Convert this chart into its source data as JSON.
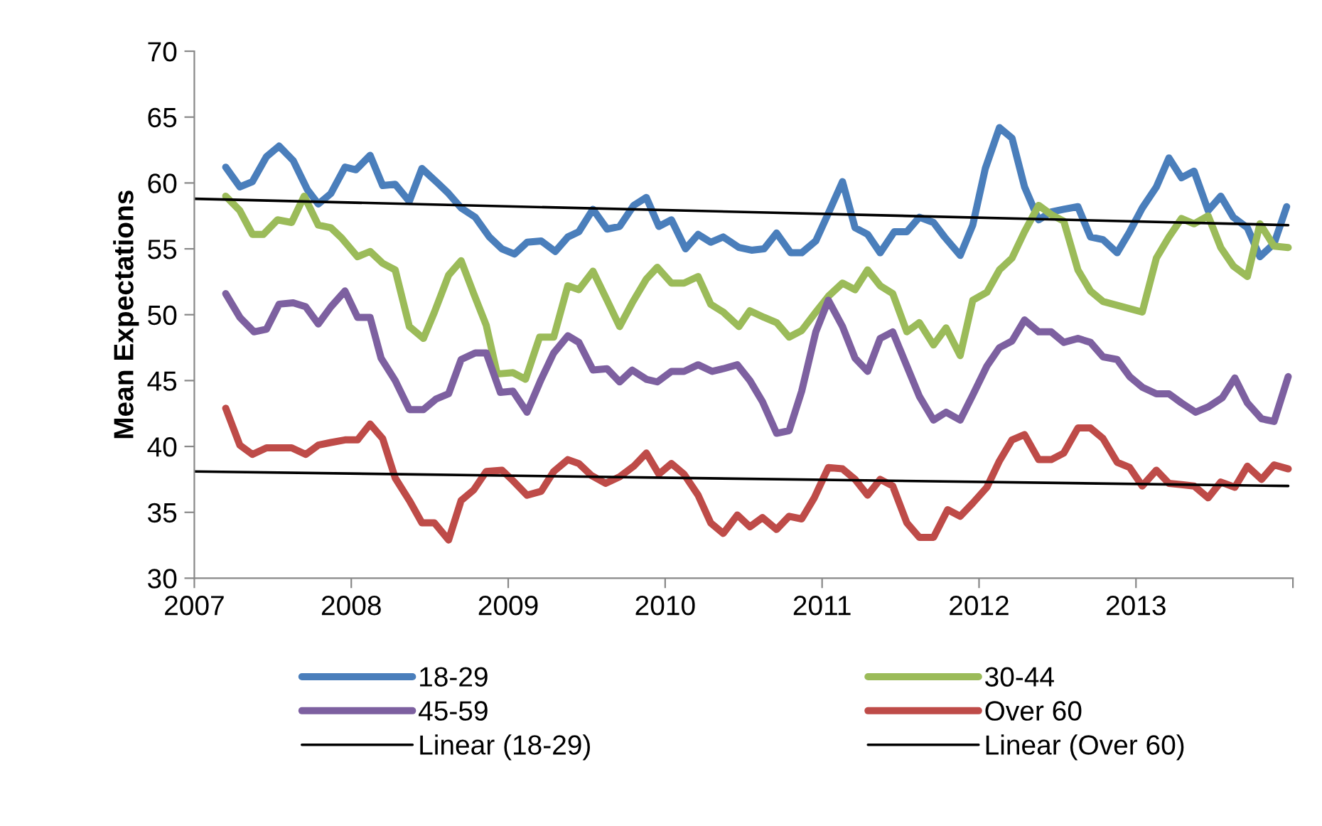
{
  "chart_data": {
    "type": "line",
    "ylabel": "Mean Expectations",
    "xlim": [
      2007,
      2014
    ],
    "xticks": [
      2007,
      2008,
      2009,
      2010,
      2011,
      2012,
      2013,
      {
        "value": 2014,
        "label": null
      }
    ],
    "ylim": [
      30,
      70
    ],
    "yticks": [
      30,
      35,
      40,
      45,
      50,
      55,
      60,
      65,
      70
    ],
    "grid": false,
    "legend": "bottom",
    "marker": "none",
    "line_style": "solid",
    "series": [
      {
        "name": "18-29",
        "color": "#4a7ebb",
        "x": [
          2007.2,
          2007.29,
          2007.37,
          2007.46,
          2007.54,
          2007.63,
          2007.72,
          2007.79,
          2007.87,
          2007.96,
          2008.03,
          2008.12,
          2008.2,
          2008.28,
          2008.37,
          2008.45,
          2008.55,
          2008.62,
          2008.7,
          2008.79,
          2008.88,
          2008.96,
          2009.04,
          2009.12,
          2009.21,
          2009.3,
          2009.38,
          2009.45,
          2009.54,
          2009.63,
          2009.71,
          2009.8,
          2009.88,
          2009.96,
          2010.04,
          2010.13,
          2010.21,
          2010.29,
          2010.37,
          2010.47,
          2010.55,
          2010.63,
          2010.71,
          2010.8,
          2010.87,
          2010.96,
          2011.04,
          2011.13,
          2011.21,
          2011.29,
          2011.37,
          2011.46,
          2011.54,
          2011.62,
          2011.71,
          2011.78,
          2011.88,
          2011.96,
          2012.04,
          2012.13,
          2012.21,
          2012.29,
          2012.38,
          2012.46,
          2012.54,
          2012.63,
          2012.71,
          2012.79,
          2012.88,
          2012.96,
          2013.04,
          2013.13,
          2013.21,
          2013.29,
          2013.37,
          2013.46,
          2013.54,
          2013.62,
          2013.71,
          2013.79,
          2013.88,
          2013.96
        ],
        "values": [
          61.2,
          59.7,
          60.1,
          62.0,
          62.8,
          61.7,
          59.5,
          58.4,
          59.2,
          61.2,
          61.0,
          62.1,
          59.8,
          59.9,
          58.6,
          61.1,
          60.0,
          59.2,
          58.1,
          57.4,
          55.9,
          55.0,
          54.6,
          55.5,
          55.6,
          54.8,
          55.9,
          56.3,
          58.0,
          56.5,
          56.7,
          58.3,
          58.9,
          56.7,
          57.2,
          55.0,
          56.1,
          55.5,
          55.9,
          55.1,
          54.9,
          55.0,
          56.2,
          54.7,
          54.7,
          55.6,
          57.7,
          60.1,
          56.6,
          56.1,
          54.7,
          56.3,
          56.3,
          57.4,
          57.0,
          55.9,
          54.5,
          56.8,
          61.1,
          64.2,
          63.4,
          59.7,
          57.2,
          57.8,
          58.0,
          58.2,
          55.9,
          55.7,
          54.7,
          56.3,
          58.1,
          59.7,
          61.9,
          60.4,
          60.9,
          57.9,
          59.0,
          57.4,
          56.6,
          54.4,
          55.4,
          58.2
        ]
      },
      {
        "name": "30-44",
        "color": "#9bbb59",
        "x": [
          2007.2,
          2007.29,
          2007.37,
          2007.44,
          2007.53,
          2007.62,
          2007.7,
          2007.79,
          2007.87,
          2007.94,
          2008.04,
          2008.12,
          2008.2,
          2008.28,
          2008.37,
          2008.46,
          2008.53,
          2008.62,
          2008.7,
          2008.78,
          2008.86,
          2008.93,
          2009.03,
          2009.11,
          2009.2,
          2009.29,
          2009.38,
          2009.45,
          2009.54,
          2009.63,
          2009.71,
          2009.79,
          2009.88,
          2009.95,
          2010.04,
          2010.12,
          2010.21,
          2010.29,
          2010.37,
          2010.47,
          2010.54,
          2010.63,
          2010.71,
          2010.79,
          2010.87,
          2010.96,
          2011.04,
          2011.13,
          2011.21,
          2011.29,
          2011.37,
          2011.45,
          2011.54,
          2011.62,
          2011.71,
          2011.79,
          2011.88,
          2011.96,
          2012.05,
          2012.13,
          2012.21,
          2012.29,
          2012.38,
          2012.46,
          2012.54,
          2012.63,
          2012.71,
          2012.79,
          2013.04,
          2013.13,
          2013.21,
          2013.29,
          2013.37,
          2013.46,
          2013.54,
          2013.62,
          2013.71,
          2013.79,
          2013.88,
          2013.97
        ],
        "values": [
          59.0,
          57.9,
          56.1,
          56.1,
          57.2,
          57.0,
          59.0,
          56.8,
          56.6,
          55.8,
          54.4,
          54.8,
          53.9,
          53.4,
          49.1,
          48.2,
          50.2,
          53.0,
          54.1,
          51.6,
          49.2,
          45.5,
          45.6,
          45.1,
          48.3,
          48.3,
          52.2,
          51.9,
          53.3,
          51.1,
          49.1,
          50.9,
          52.7,
          53.6,
          52.4,
          52.4,
          52.9,
          50.8,
          50.2,
          49.1,
          50.3,
          49.8,
          49.4,
          48.3,
          48.8,
          50.2,
          51.4,
          52.4,
          51.9,
          53.4,
          52.2,
          51.6,
          48.7,
          49.4,
          47.7,
          49.0,
          46.9,
          51.1,
          51.7,
          53.4,
          54.3,
          56.3,
          58.3,
          57.6,
          57.1,
          53.4,
          51.8,
          51.0,
          50.2,
          54.3,
          55.9,
          57.3,
          56.9,
          57.5,
          55.1,
          53.7,
          52.9,
          56.9,
          55.2,
          55.1
        ]
      },
      {
        "name": "45-59",
        "color": "#7d60a0",
        "x": [
          2007.2,
          2007.29,
          2007.38,
          2007.46,
          2007.54,
          2007.63,
          2007.71,
          2007.79,
          2007.87,
          2007.96,
          2008.04,
          2008.12,
          2008.19,
          2008.28,
          2008.37,
          2008.46,
          2008.54,
          2008.62,
          2008.7,
          2008.79,
          2008.86,
          2008.95,
          2009.03,
          2009.12,
          2009.21,
          2009.29,
          2009.38,
          2009.45,
          2009.54,
          2009.63,
          2009.71,
          2009.79,
          2009.88,
          2009.95,
          2010.04,
          2010.12,
          2010.21,
          2010.3,
          2010.37,
          2010.46,
          2010.54,
          2010.62,
          2010.71,
          2010.79,
          2010.87,
          2010.96,
          2011.04,
          2011.13,
          2011.21,
          2011.29,
          2011.37,
          2011.45,
          2011.54,
          2011.62,
          2011.71,
          2011.79,
          2011.88,
          2011.96,
          2012.05,
          2012.13,
          2012.21,
          2012.29,
          2012.38,
          2012.46,
          2012.54,
          2012.63,
          2012.71,
          2012.79,
          2012.88,
          2012.96,
          2013.04,
          2013.13,
          2013.21,
          2013.29,
          2013.38,
          2013.46,
          2013.55,
          2013.63,
          2013.71,
          2013.8,
          2013.88,
          2013.97
        ],
        "values": [
          51.6,
          49.8,
          48.7,
          48.9,
          50.8,
          50.9,
          50.6,
          49.3,
          50.6,
          51.8,
          49.8,
          49.8,
          46.7,
          45.0,
          42.8,
          42.8,
          43.6,
          44.0,
          46.6,
          47.1,
          47.1,
          44.1,
          44.2,
          42.6,
          45.1,
          47.1,
          48.4,
          47.9,
          45.8,
          45.9,
          44.9,
          45.8,
          45.1,
          44.9,
          45.7,
          45.7,
          46.2,
          45.7,
          45.9,
          46.2,
          45.0,
          43.4,
          41.0,
          41.2,
          44.2,
          48.7,
          51.1,
          49.1,
          46.7,
          45.7,
          48.2,
          48.7,
          46.1,
          43.8,
          42.0,
          42.6,
          42.0,
          43.9,
          46.1,
          47.5,
          48.0,
          49.6,
          48.7,
          48.7,
          47.9,
          48.2,
          47.9,
          46.8,
          46.6,
          45.3,
          44.5,
          44.0,
          44.0,
          43.3,
          42.6,
          43.0,
          43.7,
          45.2,
          43.3,
          42.1,
          41.9,
          45.3
        ]
      },
      {
        "name": "Over 60",
        "color": "#be4b48",
        "x": [
          2007.2,
          2007.29,
          2007.37,
          2007.46,
          2007.54,
          2007.62,
          2007.71,
          2007.79,
          2007.87,
          2007.96,
          2008.04,
          2008.12,
          2008.2,
          2008.28,
          2008.37,
          2008.45,
          2008.53,
          2008.62,
          2008.7,
          2008.78,
          2008.86,
          2008.96,
          2009.03,
          2009.12,
          2009.21,
          2009.29,
          2009.38,
          2009.45,
          2009.53,
          2009.62,
          2009.71,
          2009.8,
          2009.88,
          2009.96,
          2010.04,
          2010.12,
          2010.21,
          2010.29,
          2010.37,
          2010.46,
          2010.54,
          2010.62,
          2010.71,
          2010.79,
          2010.87,
          2010.95,
          2011.04,
          2011.13,
          2011.21,
          2011.29,
          2011.37,
          2011.45,
          2011.54,
          2011.62,
          2011.71,
          2011.8,
          2011.88,
          2011.96,
          2012.05,
          2012.13,
          2012.21,
          2012.29,
          2012.38,
          2012.46,
          2012.54,
          2012.63,
          2012.71,
          2012.79,
          2012.88,
          2012.96,
          2013.04,
          2013.13,
          2013.21,
          2013.29,
          2013.37,
          2013.46,
          2013.54,
          2013.63,
          2013.71,
          2013.8,
          2013.88,
          2013.97
        ],
        "values": [
          42.9,
          40.1,
          39.4,
          39.9,
          39.9,
          39.9,
          39.4,
          40.1,
          40.3,
          40.5,
          40.5,
          41.7,
          40.6,
          37.6,
          35.9,
          34.2,
          34.2,
          32.9,
          35.9,
          36.7,
          38.1,
          38.2,
          37.4,
          36.3,
          36.6,
          38.1,
          39.0,
          38.7,
          37.8,
          37.2,
          37.7,
          38.5,
          39.5,
          37.9,
          38.7,
          37.9,
          36.3,
          34.2,
          33.4,
          34.8,
          33.9,
          34.6,
          33.7,
          34.7,
          34.5,
          36.1,
          38.4,
          38.3,
          37.5,
          36.3,
          37.5,
          37.0,
          34.2,
          33.1,
          33.1,
          35.2,
          34.7,
          35.7,
          36.9,
          38.9,
          40.5,
          40.9,
          39.0,
          39.0,
          39.5,
          41.4,
          41.4,
          40.6,
          38.8,
          38.4,
          37.0,
          38.2,
          37.2,
          37.1,
          37.0,
          36.1,
          37.3,
          36.9,
          38.5,
          37.5,
          38.6,
          38.3
        ]
      },
      {
        "name": "Linear (18-29)",
        "color": "#000000",
        "x": [
          2007.0,
          2013.97
        ],
        "values": [
          58.8,
          56.8
        ]
      },
      {
        "name": "Linear (Over 60)",
        "color": "#000000",
        "x": [
          2007.0,
          2013.97
        ],
        "values": [
          38.1,
          37.0
        ]
      }
    ]
  }
}
